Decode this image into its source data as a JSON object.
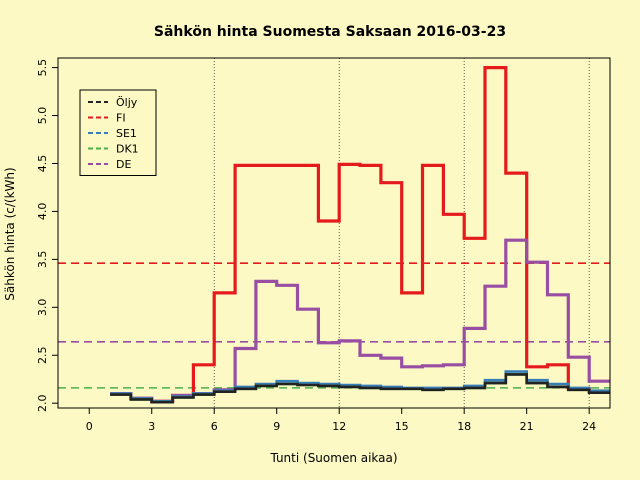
{
  "chart_data": {
    "type": "line",
    "title": "Sähkön hinta Suomesta Saksaan 2016-03-23",
    "xlabel": "Tunti (Suomen aikaa)",
    "ylabel": "Sähkön hinta (c/(kWh)",
    "xlim": [
      -1.5,
      25
    ],
    "ylim": [
      1.95,
      5.6
    ],
    "xticks": [
      0,
      3,
      6,
      9,
      12,
      15,
      18,
      21,
      24
    ],
    "yticks": [
      2.0,
      2.5,
      3.0,
      3.5,
      4.0,
      4.5,
      5.0,
      5.5
    ],
    "ytick_labels": [
      "2.0",
      "2.5",
      "3.0",
      "3.5",
      "4.0",
      "4.5",
      "5.0",
      "5.5"
    ],
    "vertical_gridlines": [
      6,
      12,
      18,
      24
    ],
    "step_type": "hourly step",
    "x_start": 1,
    "series": [
      {
        "name": "FI",
        "color": "#e41a1c",
        "values": [
          2.1,
          2.05,
          2.02,
          2.08,
          2.4,
          3.15,
          4.48,
          4.48,
          4.48,
          4.48,
          3.9,
          4.49,
          4.48,
          4.3,
          3.15,
          4.48,
          3.97,
          3.72,
          5.5,
          4.4,
          2.38,
          2.4,
          2.15,
          2.12
        ]
      },
      {
        "name": "DE",
        "color": "#984ea3",
        "values": [
          2.1,
          2.05,
          2.02,
          2.08,
          2.1,
          2.14,
          2.57,
          3.27,
          3.23,
          2.98,
          2.63,
          2.65,
          2.5,
          2.47,
          2.38,
          2.39,
          2.4,
          2.78,
          3.22,
          3.7,
          3.47,
          3.13,
          2.48,
          2.23
        ]
      },
      {
        "name": "SE1",
        "color": "#377eb8",
        "values": [
          2.1,
          2.05,
          2.02,
          2.07,
          2.1,
          2.13,
          2.17,
          2.2,
          2.23,
          2.21,
          2.2,
          2.19,
          2.18,
          2.17,
          2.16,
          2.16,
          2.16,
          2.18,
          2.24,
          2.33,
          2.24,
          2.2,
          2.16,
          2.13
        ]
      },
      {
        "name": "DK1",
        "color": "#4daf4a",
        "values": [
          2.09,
          2.04,
          2.01,
          2.06,
          2.09,
          2.12,
          2.15,
          2.18,
          2.2,
          2.19,
          2.18,
          2.17,
          2.16,
          2.15,
          2.15,
          2.14,
          2.15,
          2.16,
          2.21,
          2.3,
          2.21,
          2.17,
          2.14,
          2.11
        ]
      },
      {
        "name": "Öljy",
        "color": "#222222",
        "values": [
          2.09,
          2.04,
          2.01,
          2.06,
          2.09,
          2.12,
          2.15,
          2.18,
          2.2,
          2.19,
          2.18,
          2.17,
          2.16,
          2.15,
          2.15,
          2.14,
          2.15,
          2.16,
          2.21,
          2.3,
          2.21,
          2.17,
          2.14,
          2.11
        ]
      }
    ],
    "reference_lines": [
      {
        "name": "FI",
        "value": 3.46,
        "color": "#e41a1c",
        "style": "dashed"
      },
      {
        "name": "DE",
        "value": 2.64,
        "color": "#984ea3",
        "style": "dashed"
      },
      {
        "name": "DK1",
        "value": 2.16,
        "color": "#4daf4a",
        "style": "dashed"
      }
    ],
    "legend": {
      "position": "top-left",
      "entries": [
        {
          "label": "Öljy",
          "color": "#222222"
        },
        {
          "label": "FI",
          "color": "#e41a1c"
        },
        {
          "label": "SE1",
          "color": "#377eb8"
        },
        {
          "label": "DK1",
          "color": "#4daf4a"
        },
        {
          "label": "DE",
          "color": "#984ea3"
        }
      ]
    },
    "background_color": "#fdf9c4"
  }
}
